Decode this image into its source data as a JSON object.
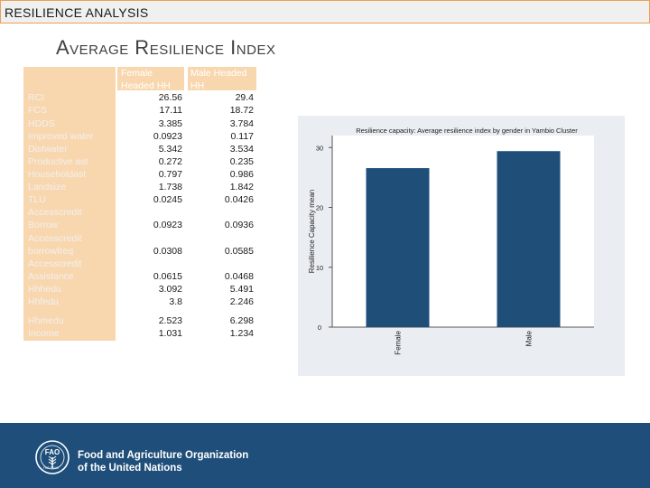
{
  "header": {
    "section_label": "RESILIENCE ANALYSIS"
  },
  "slide": {
    "title": "Average Resilience Index"
  },
  "table": {
    "col_female": "Female Headed HH",
    "col_male": "Male Headed HH",
    "rows": [
      {
        "label": "RCI",
        "female": "26.56",
        "male": "29.4"
      },
      {
        "label": "FCS",
        "female": "17.11",
        "male": "18.72"
      },
      {
        "label": "HDDS",
        "female": "3.385",
        "male": "3.784"
      },
      {
        "label": "Improved water",
        "female": "0.0923",
        "male": "0.117"
      },
      {
        "label": "Distwater",
        "female": "5.342",
        "male": "3.534"
      },
      {
        "label": "Productive ast",
        "female": "0.272",
        "male": "0.235"
      },
      {
        "label": "Householdast",
        "female": "0.797",
        "male": "0.986"
      },
      {
        "label": "Landsize",
        "female": "1.738",
        "male": "1.842"
      },
      {
        "label": "TLU",
        "female": "0.0245",
        "male": "0.0426"
      },
      {
        "label": "Accesscredit Borrow",
        "female": "0.0923",
        "male": "0.0936"
      },
      {
        "label": "Accesscredit borrowfreq",
        "female": "0.0308",
        "male": "0.0585"
      },
      {
        "label": "Accesscredit Assistance",
        "female": "0.0615",
        "male": "0.0468"
      },
      {
        "label": "Hhhedu",
        "female": "3.092",
        "male": "5.491"
      },
      {
        "label": "Hhfedu",
        "female": "3.8",
        "male": "2.246"
      },
      {
        "label": "Hhmedu",
        "female": "2.523",
        "male": "6.298"
      },
      {
        "label": "Income",
        "female": "1.031",
        "male": "1.234"
      }
    ]
  },
  "chart_data": {
    "type": "bar",
    "title": "Resilience capacity: Average resilience index by gender in Yambio Cluster",
    "xlabel": "",
    "ylabel": "Resilience Capacity mean",
    "categories": [
      "Female",
      "Male"
    ],
    "values": [
      26.56,
      29.4
    ],
    "ylim": [
      0,
      32
    ],
    "yticks": [
      "0",
      "10",
      "20",
      "30"
    ],
    "bar_color": "#1f4e79",
    "grid": false
  },
  "footer": {
    "org_line1": "Food and Agriculture Organization",
    "org_line2": "of the United Nations",
    "emblem_text": "FIAT PANIS",
    "background": "#1e4e79"
  }
}
